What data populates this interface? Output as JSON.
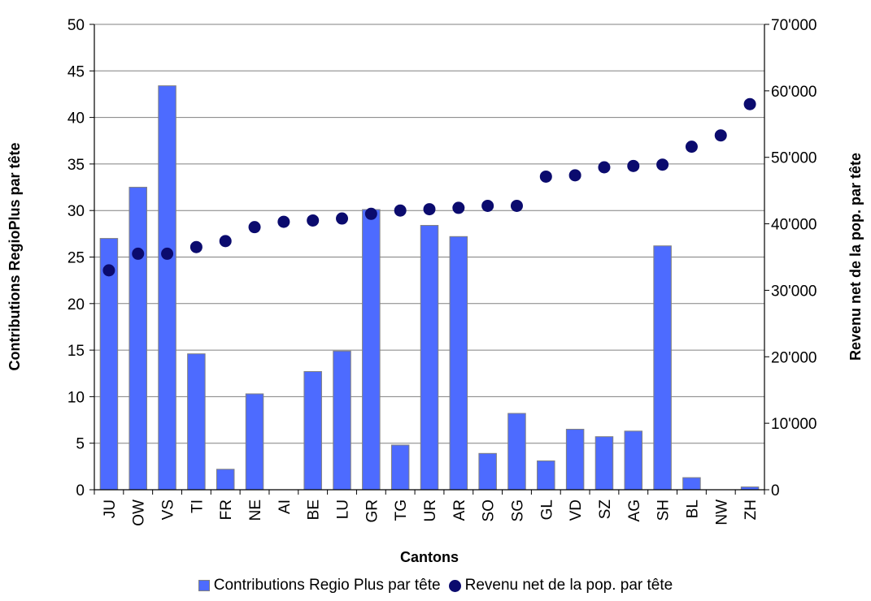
{
  "chart_data": {
    "type": "bar",
    "categories": [
      "JU",
      "OW",
      "VS",
      "TI",
      "FR",
      "NE",
      "AI",
      "BE",
      "LU",
      "GR",
      "TG",
      "UR",
      "AR",
      "SO",
      "SG",
      "GL",
      "VD",
      "SZ",
      "AG",
      "SH",
      "BL",
      "NW",
      "ZH"
    ],
    "series": [
      {
        "name": "Contributions Regio Plus par tête",
        "type": "bar",
        "axis": "left",
        "values": [
          27.0,
          32.5,
          43.4,
          14.6,
          2.2,
          10.3,
          0,
          12.7,
          14.9,
          30.1,
          4.8,
          28.4,
          27.2,
          3.9,
          8.2,
          3.1,
          6.5,
          5.7,
          6.3,
          26.2,
          1.3,
          0,
          0.3
        ]
      },
      {
        "name": "Revenu net de la pop. par tête",
        "type": "scatter",
        "axis": "right",
        "values": [
          33000,
          35500,
          35500,
          36500,
          37400,
          39500,
          40300,
          40500,
          40800,
          41500,
          42000,
          42200,
          42400,
          42700,
          42700,
          47100,
          47300,
          48500,
          48700,
          48900,
          51600,
          53300,
          58000
        ]
      }
    ],
    "xlabel": "Cantons",
    "ylabel": "Contributions RegioPlus par tête",
    "y2label": "Revenu net de la pop. par tête",
    "ylim": [
      0,
      50
    ],
    "y2lim": [
      0,
      70000
    ],
    "yticks": [
      "0",
      "5",
      "10",
      "15",
      "20",
      "25",
      "30",
      "35",
      "40",
      "45",
      "50"
    ],
    "y2ticks": [
      "0",
      "10'000",
      "20'000",
      "30'000",
      "40'000",
      "50'000",
      "60'000",
      "70'000"
    ],
    "grid": true,
    "legend": "bottom",
    "colors": {
      "bar": "#4d6bff",
      "bar_border": "#808080",
      "dot": "#0b0b6e",
      "grid": "#808080"
    }
  }
}
